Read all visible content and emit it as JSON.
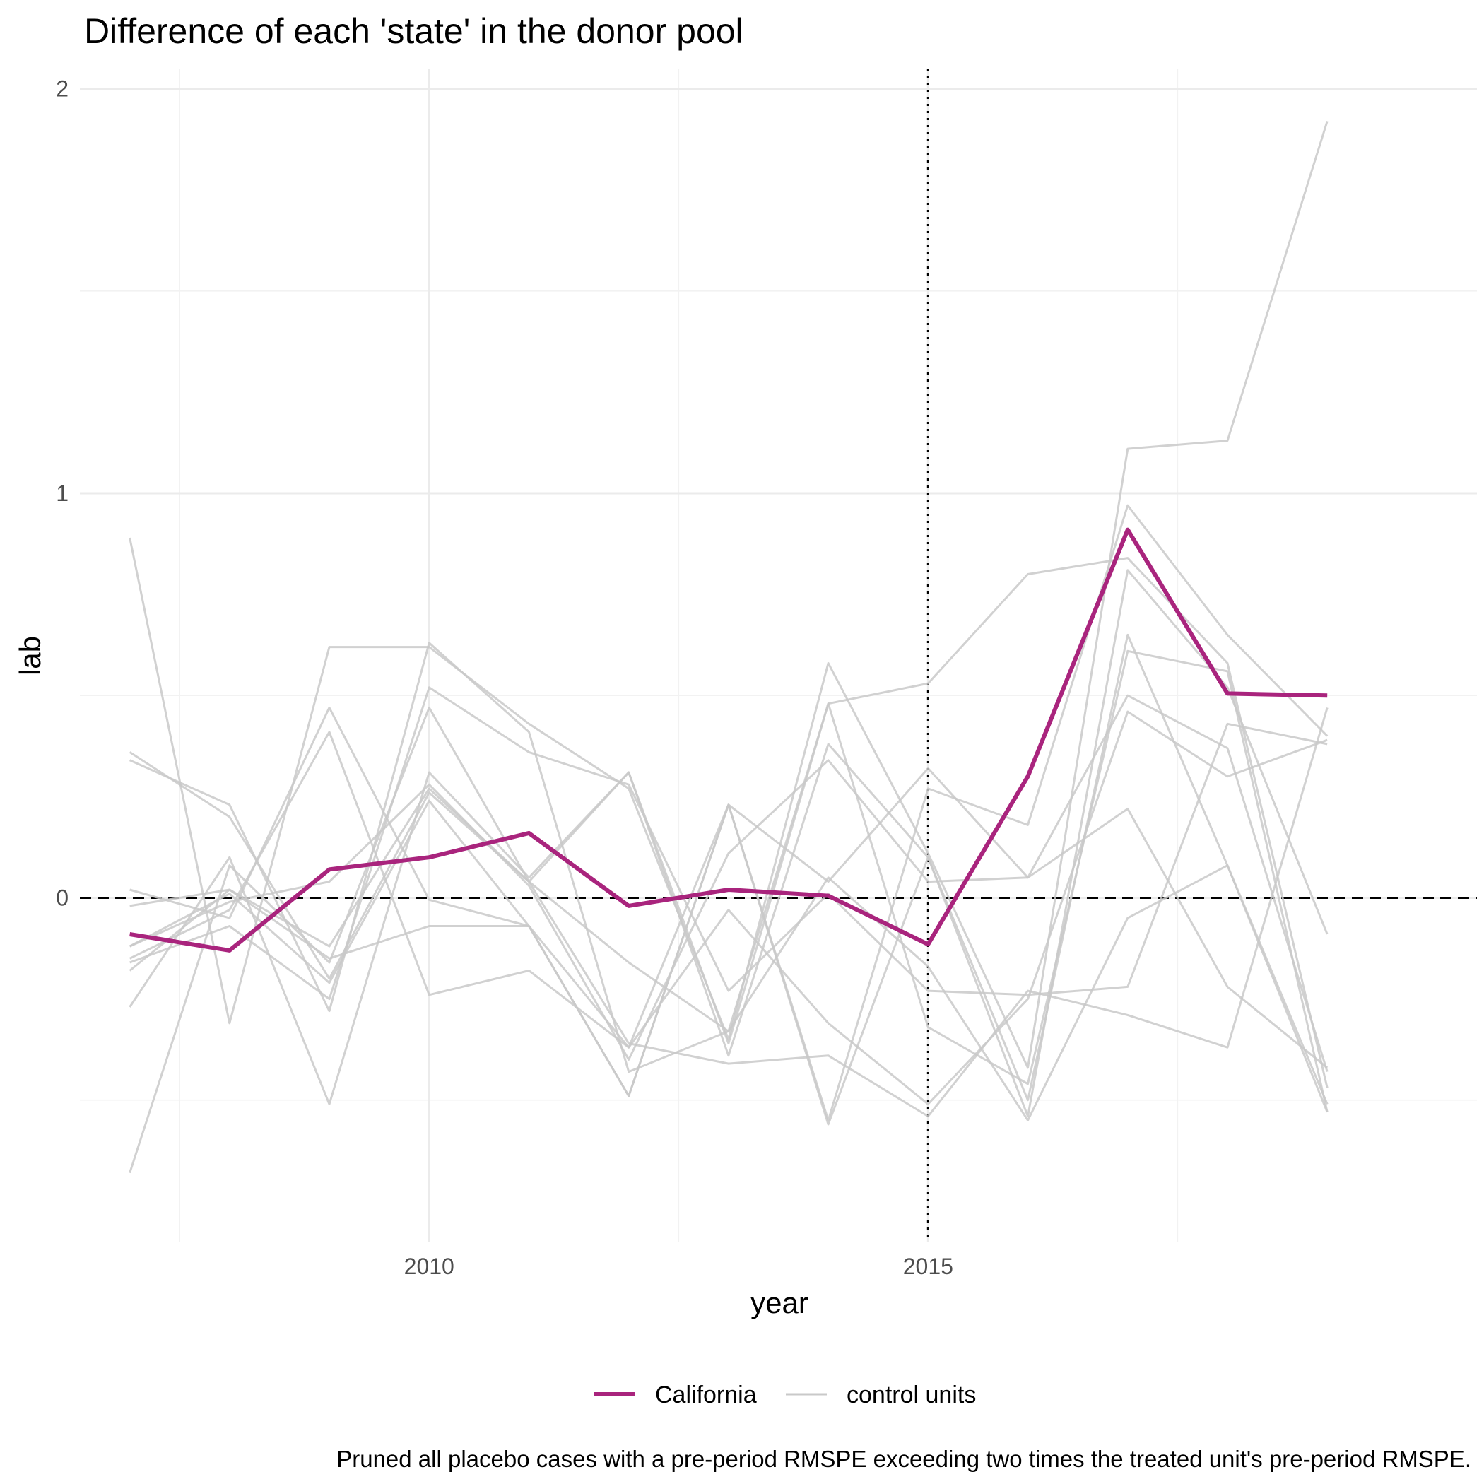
{
  "chart_data": {
    "type": "line",
    "title": "Difference of each 'state' in the donor pool",
    "xlabel": "year",
    "ylabel": "lab",
    "caption": "Pruned all placebo cases with a pre-period RMSPE exceeding two times the treated unit's pre-period RMSPE.",
    "xlim": [
      2006.5,
      2020.5
    ],
    "ylim": [
      -0.85,
      2.05
    ],
    "x_ticks": [
      2010,
      2015
    ],
    "y_ticks": [
      0,
      1,
      2
    ],
    "x_minor": [
      2007.5,
      2012.5,
      2017.5
    ],
    "y_minor": [
      -0.5,
      0.5,
      1.5
    ],
    "grid": true,
    "legend_position": "bottom",
    "treatment_year": 2015,
    "zero_line": 0,
    "years": [
      2007,
      2008,
      2009,
      2010,
      2011,
      2012,
      2013,
      2014,
      2015,
      2016,
      2017,
      2018,
      2019
    ],
    "colors": {
      "treated": "#a9247d",
      "control": "#c9c9c9"
    },
    "series": [
      {
        "name": "California",
        "values": [
          -0.09,
          -0.13,
          0.07,
          0.1,
          0.16,
          -0.02,
          0.02,
          0.005,
          -0.115,
          0.3,
          0.91,
          0.505,
          0.5
        ]
      },
      {
        "values": [
          0.89,
          -0.31,
          0.62,
          0.62,
          0.43,
          0.27,
          -0.35,
          0.58,
          0.11,
          -0.42,
          1.11,
          1.13,
          1.92
        ]
      },
      {
        "values": [
          0.36,
          0.2,
          -0.2,
          0.26,
          0.04,
          0.31,
          -0.36,
          0.48,
          0.53,
          0.8,
          0.84,
          0.58,
          -0.47
        ]
      },
      {
        "values": [
          0.02,
          -0.05,
          0.47,
          -0.005,
          -0.07,
          -0.37,
          0.23,
          -0.55,
          0.27,
          0.18,
          0.97,
          0.65,
          0.4
        ]
      },
      {
        "values": [
          -0.27,
          0.1,
          -0.51,
          0.31,
          0.05,
          0.31,
          -0.39,
          0.38,
          0.1,
          -0.54,
          0.81,
          0.52,
          -0.09
        ]
      },
      {
        "values": [
          -0.18,
          0.02,
          -0.15,
          -0.07,
          -0.07,
          -0.49,
          0.23,
          -0.56,
          0.1,
          -0.5,
          0.65,
          0.08,
          -0.53
        ]
      },
      {
        "values": [
          0.34,
          0.23,
          -0.28,
          0.63,
          0.41,
          -0.43,
          -0.33,
          0.48,
          -0.32,
          -0.46,
          0.61,
          0.56,
          -0.53
        ]
      },
      {
        "values": [
          -0.16,
          -0.07,
          -0.25,
          0.52,
          0.36,
          0.28,
          -0.23,
          0.01,
          -0.23,
          -0.24,
          -0.22,
          0.43,
          0.38
        ]
      },
      {
        "values": [
          -0.02,
          0.02,
          -0.12,
          0.27,
          0.04,
          -0.16,
          -0.33,
          0.05,
          -0.17,
          -0.55,
          -0.05,
          0.08,
          -0.51
        ]
      },
      {
        "values": [
          -0.68,
          0.08,
          -0.16,
          0.47,
          0.04,
          -0.36,
          -0.41,
          -0.39,
          -0.54,
          -0.23,
          -0.29,
          -0.37,
          0.47
        ]
      },
      {
        "values": [
          -0.15,
          -0.03,
          0.41,
          -0.24,
          -0.18,
          -0.37,
          -0.03,
          -0.31,
          -0.51,
          -0.25,
          0.46,
          0.3,
          0.39
        ]
      },
      {
        "values": [
          -0.12,
          0.01,
          -0.21,
          0.24,
          -0.07,
          -0.49,
          0.23,
          0.04,
          0.32,
          0.05,
          0.22,
          -0.22,
          -0.42
        ]
      },
      {
        "values": [
          -0.12,
          -0.01,
          0.04,
          0.28,
          0.03,
          -0.4,
          0.11,
          0.34,
          0.04,
          0.05,
          0.5,
          0.37,
          -0.43
        ]
      }
    ],
    "legend": [
      {
        "label": "California",
        "series": "treated"
      },
      {
        "label": "control units",
        "series": "control"
      }
    ]
  }
}
